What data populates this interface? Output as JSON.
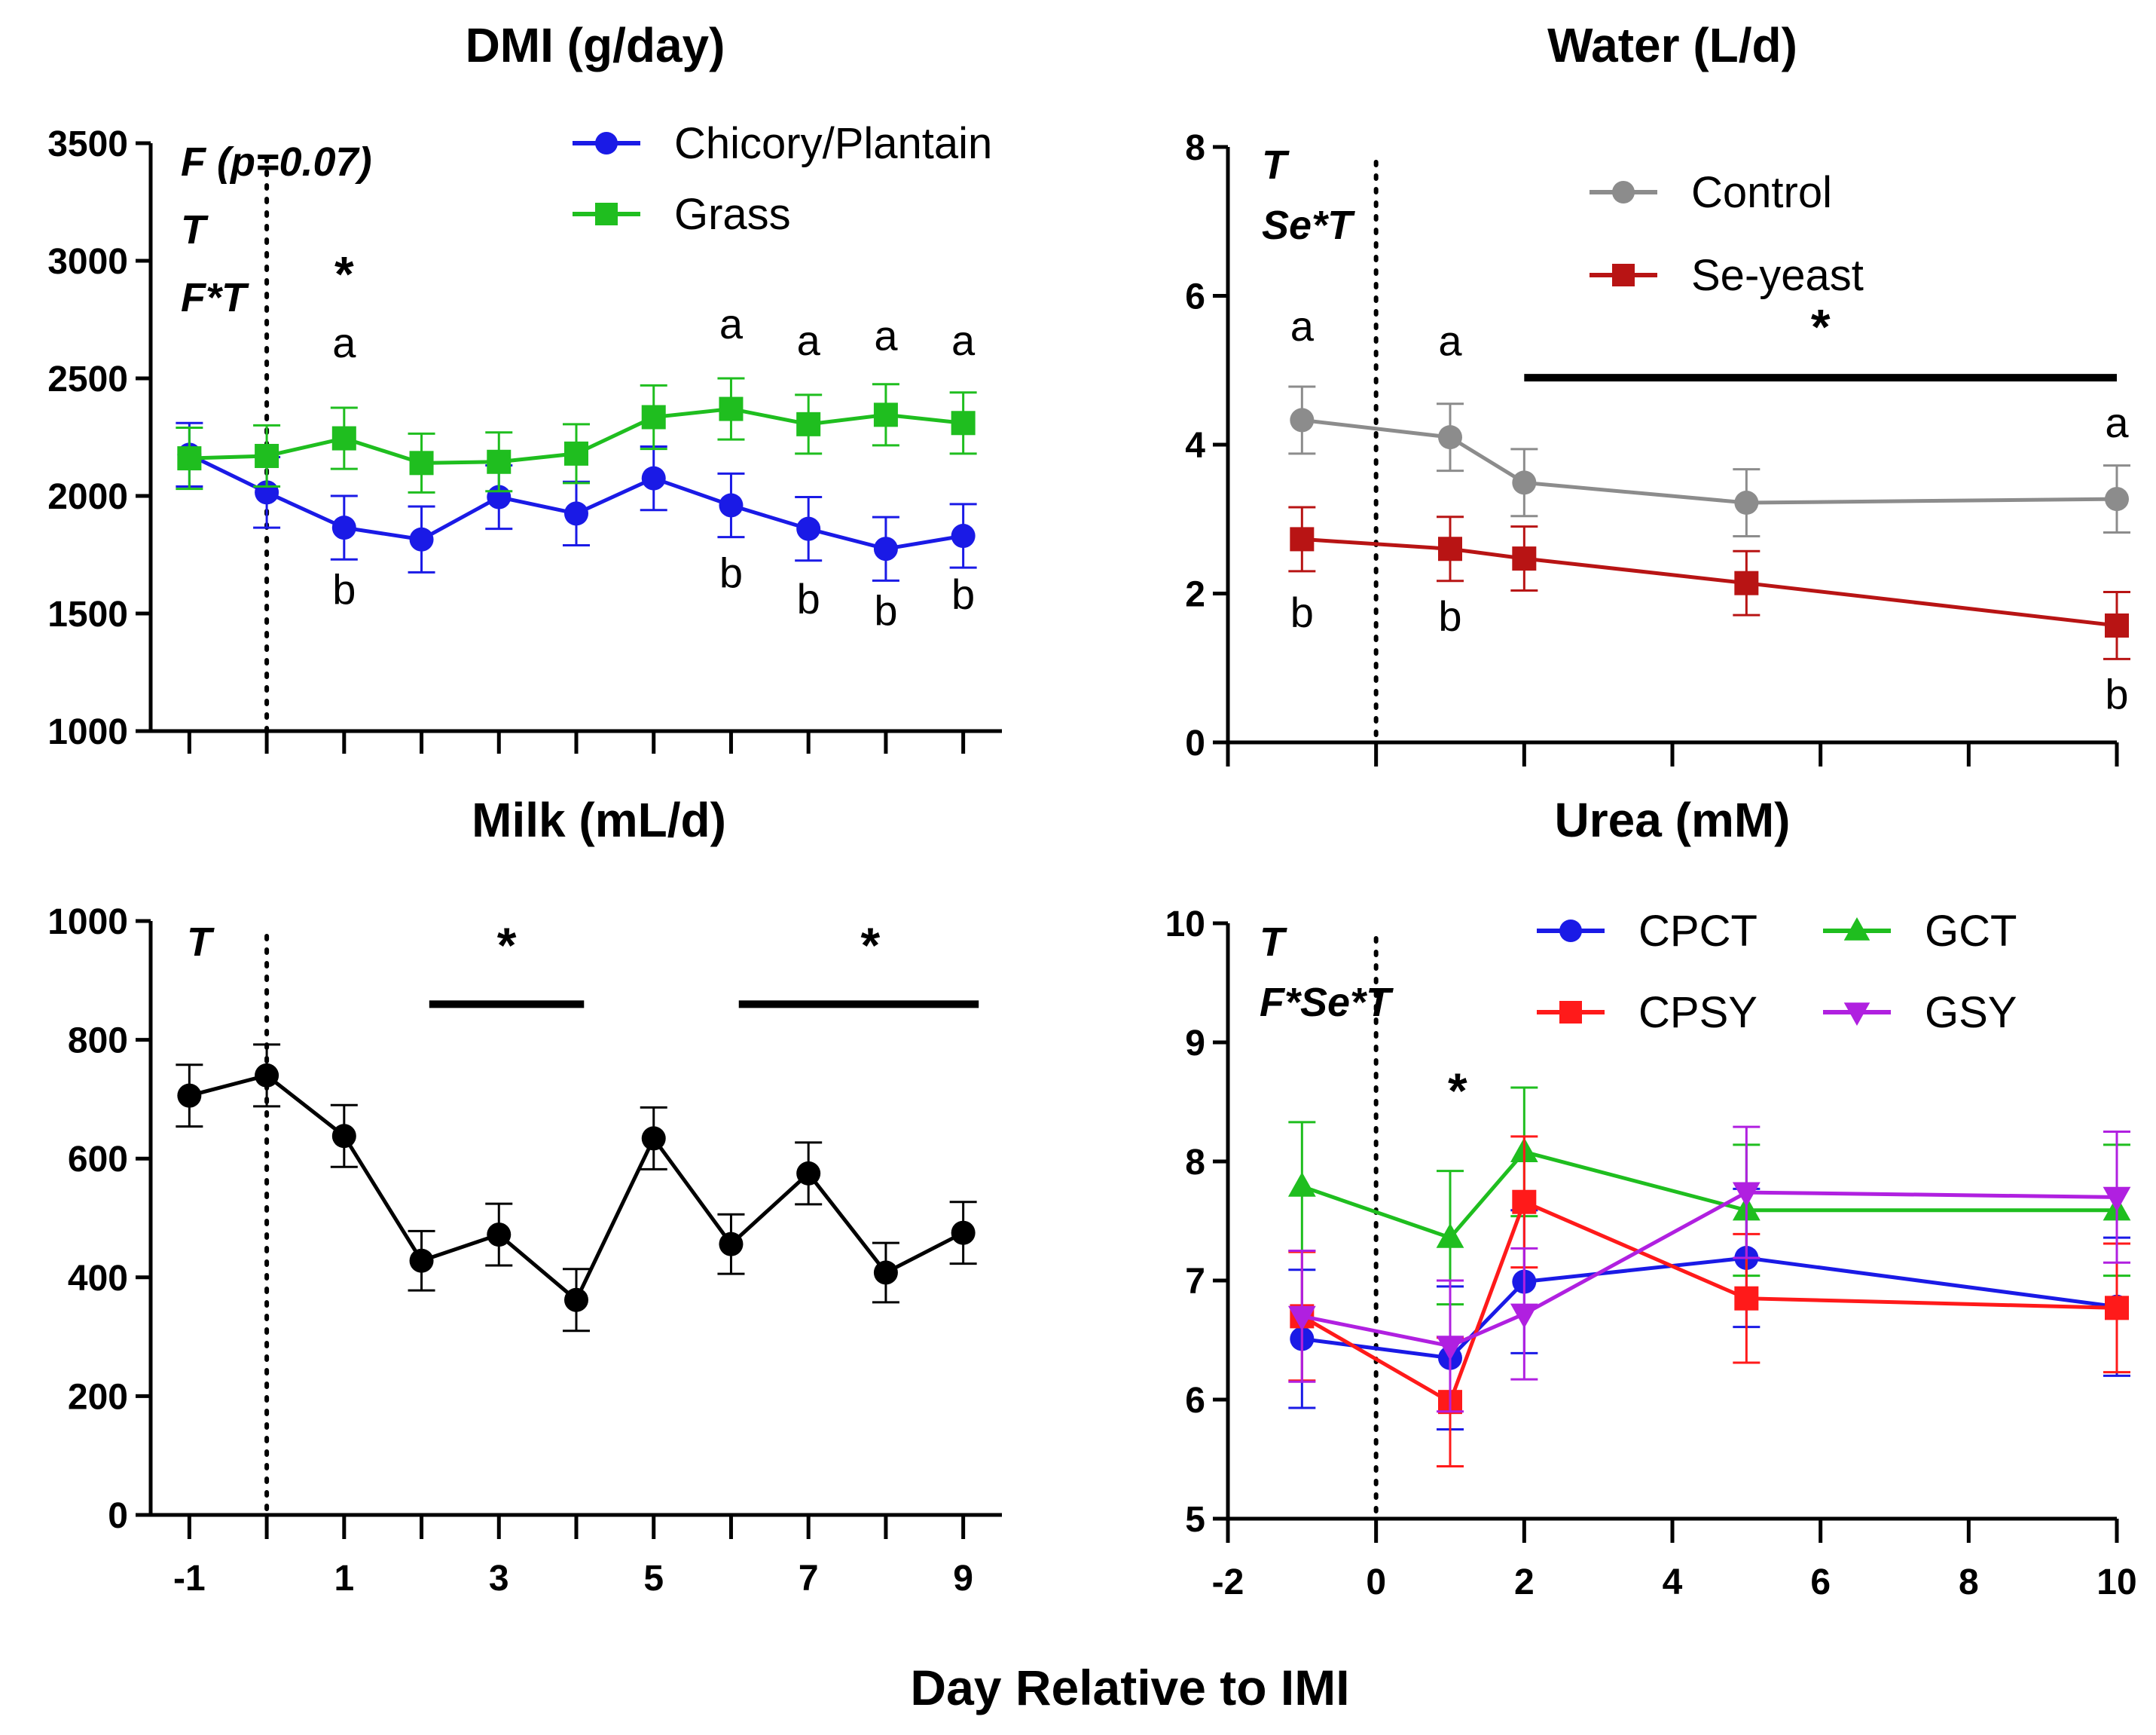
{
  "figure": {
    "xlabel": "Day Relative to IMI"
  },
  "chart_data": [
    {
      "id": "dmi",
      "type": "line",
      "title": "DMI (g/day)",
      "xlabel": "",
      "ylabel": "",
      "xlim": [
        -1.5,
        9.5
      ],
      "ylim": [
        1000,
        3500
      ],
      "yticks": [
        1000,
        1500,
        2000,
        2500,
        3000,
        3500
      ],
      "xticks": [
        -1,
        0,
        1,
        2,
        3,
        4,
        5,
        6,
        7,
        8,
        9
      ],
      "xticklabels": [],
      "vline_x": 0,
      "effects": [
        "F (p=0.07)",
        "T",
        "F*T"
      ],
      "legend_position": "top-right",
      "series": [
        {
          "name": "Chicory/Plantain",
          "color": "#1a1ae6",
          "marker": "circle",
          "x": [
            -1,
            0,
            1,
            2,
            3,
            4,
            5,
            6,
            7,
            8,
            9
          ],
          "values": [
            2175,
            2015,
            1865,
            1815,
            1995,
            1925,
            2075,
            1960,
            1860,
            1775,
            1830
          ],
          "err": [
            135,
            150,
            135,
            140,
            135,
            135,
            135,
            135,
            135,
            135,
            135
          ]
        },
        {
          "name": "Grass",
          "color": "#1fbe1f",
          "marker": "square",
          "x": [
            -1,
            0,
            1,
            2,
            3,
            4,
            5,
            6,
            7,
            8,
            9
          ],
          "values": [
            2160,
            2170,
            2245,
            2140,
            2145,
            2180,
            2335,
            2370,
            2305,
            2345,
            2310
          ],
          "err": [
            130,
            130,
            130,
            125,
            125,
            125,
            135,
            130,
            125,
            130,
            130
          ]
        }
      ],
      "annotations": [
        {
          "text": "*",
          "x": 1,
          "y": 2870
        },
        {
          "text": "a",
          "x": 1,
          "y": 2590
        },
        {
          "text": "a",
          "x": 6,
          "y": 2670
        },
        {
          "text": "a",
          "x": 7,
          "y": 2600
        },
        {
          "text": "a",
          "x": 8,
          "y": 2620
        },
        {
          "text": "a",
          "x": 9,
          "y": 2600
        },
        {
          "text": "b",
          "x": 1,
          "y": 1540
        },
        {
          "text": "b",
          "x": 6,
          "y": 1610
        },
        {
          "text": "b",
          "x": 7,
          "y": 1500
        },
        {
          "text": "b",
          "x": 8,
          "y": 1450
        },
        {
          "text": "b",
          "x": 9,
          "y": 1520
        }
      ],
      "bars": []
    },
    {
      "id": "water",
      "type": "line",
      "title": "Water (L/d)",
      "xlabel": "",
      "ylabel": "",
      "xlim": [
        -2,
        10
      ],
      "ylim": [
        0,
        8
      ],
      "yticks": [
        0,
        2,
        4,
        6,
        8
      ],
      "xticks": [
        -2,
        0,
        2,
        4,
        6,
        8,
        10
      ],
      "xticklabels": [],
      "vline_x": 0,
      "effects": [
        "T",
        "Se*T"
      ],
      "legend_position": "top-right",
      "series": [
        {
          "name": "Control",
          "color": "#8c8c8c",
          "marker": "circle",
          "x": [
            -1,
            1,
            2,
            5,
            10
          ],
          "values": [
            4.33,
            4.1,
            3.49,
            3.22,
            3.27
          ],
          "err": [
            0.45,
            0.45,
            0.45,
            0.45,
            0.45
          ]
        },
        {
          "name": "Se-yeast",
          "color": "#b81414",
          "marker": "square",
          "x": [
            -1,
            1,
            2,
            5,
            10
          ],
          "values": [
            2.73,
            2.6,
            2.47,
            2.14,
            1.57
          ],
          "err": [
            0.43,
            0.43,
            0.43,
            0.43,
            0.45
          ]
        }
      ],
      "annotations": [
        {
          "text": "a",
          "x": -1,
          "y": 5.4
        },
        {
          "text": "a",
          "x": 1,
          "y": 5.2
        },
        {
          "text": "a",
          "x": 10,
          "y": 4.1
        },
        {
          "text": "b",
          "x": -1,
          "y": 1.55
        },
        {
          "text": "b",
          "x": 1,
          "y": 1.5
        },
        {
          "text": "b",
          "x": 10,
          "y": 0.45
        },
        {
          "text": "*",
          "x": 6,
          "y": 5.35
        }
      ],
      "bars": [
        {
          "x1": 2,
          "x2": 10,
          "y": 4.9
        }
      ]
    },
    {
      "id": "milk",
      "type": "line",
      "title": "Milk (mL/d)",
      "xlabel": "",
      "ylabel": "",
      "xlim": [
        -1.5,
        9.5
      ],
      "ylim": [
        0,
        1000
      ],
      "yticks": [
        0,
        200,
        400,
        600,
        800,
        1000
      ],
      "xticks": [
        -1,
        0,
        1,
        2,
        3,
        4,
        5,
        6,
        7,
        8,
        9
      ],
      "xticklabels": [
        "-1",
        "",
        "1",
        "",
        "3",
        "",
        "5",
        "",
        "7",
        "",
        "9"
      ],
      "vline_x": 0,
      "effects": [
        "T"
      ],
      "legend_position": "none",
      "series": [
        {
          "name": "Milk",
          "color": "#000000",
          "marker": "circle",
          "x": [
            -1,
            0,
            1,
            2,
            3,
            4,
            5,
            6,
            7,
            8,
            9
          ],
          "values": [
            706,
            740,
            638,
            428,
            472,
            362,
            634,
            456,
            575,
            408,
            475
          ],
          "err": [
            52,
            52,
            52,
            50,
            52,
            52,
            52,
            50,
            52,
            50,
            52
          ]
        }
      ],
      "annotations": [
        {
          "text": "*",
          "x": 3.1,
          "y": 930
        },
        {
          "text": "*",
          "x": 7.8,
          "y": 930
        }
      ],
      "bars": [
        {
          "x1": 2.1,
          "x2": 4.1,
          "y": 860
        },
        {
          "x1": 6.1,
          "x2": 9.2,
          "y": 860
        }
      ]
    },
    {
      "id": "urea",
      "type": "line",
      "title": "Urea (mM)",
      "xlabel": "",
      "ylabel": "",
      "xlim": [
        -2,
        10
      ],
      "ylim": [
        5,
        10
      ],
      "yticks": [
        5,
        6,
        7,
        8,
        9,
        10
      ],
      "xticks": [
        -2,
        0,
        2,
        4,
        6,
        8,
        10
      ],
      "xticklabels": [
        "-2",
        "0",
        "2",
        "4",
        "6",
        "8",
        "10"
      ],
      "vline_x": 0,
      "effects": [
        "T",
        "F*Se*T"
      ],
      "legend_position": "top-right",
      "series": [
        {
          "name": "CPCT",
          "color": "#1a1ae6",
          "marker": "circle",
          "x": [
            -1,
            1,
            2,
            5,
            10
          ],
          "values": [
            6.51,
            6.35,
            6.99,
            7.19,
            6.78
          ],
          "err": [
            0.58,
            0.6,
            0.6,
            0.58,
            0.58
          ]
        },
        {
          "name": "GCT",
          "color": "#1fbe1f",
          "marker": "triangle-up",
          "x": [
            -1,
            1,
            2,
            5,
            10
          ],
          "values": [
            7.79,
            7.36,
            8.08,
            7.59,
            7.59
          ],
          "err": [
            0.54,
            0.56,
            0.54,
            0.55,
            0.55
          ]
        },
        {
          "name": "CPSY",
          "color": "#ff1a1a",
          "marker": "square",
          "x": [
            -1,
            1,
            2,
            5,
            10
          ],
          "values": [
            6.7,
            5.98,
            7.66,
            6.85,
            6.77
          ],
          "err": [
            0.54,
            0.54,
            0.55,
            0.54,
            0.54
          ]
        },
        {
          "name": "GSY",
          "color": "#b020e0",
          "marker": "triangle-down",
          "x": [
            -1,
            1,
            2,
            5,
            10
          ],
          "values": [
            6.7,
            6.45,
            6.72,
            7.74,
            7.7
          ],
          "err": [
            0.55,
            0.55,
            0.55,
            0.55,
            0.55
          ]
        }
      ],
      "annotations": [
        {
          "text": "*",
          "x": 1.1,
          "y": 8.45
        }
      ],
      "bars": []
    }
  ]
}
